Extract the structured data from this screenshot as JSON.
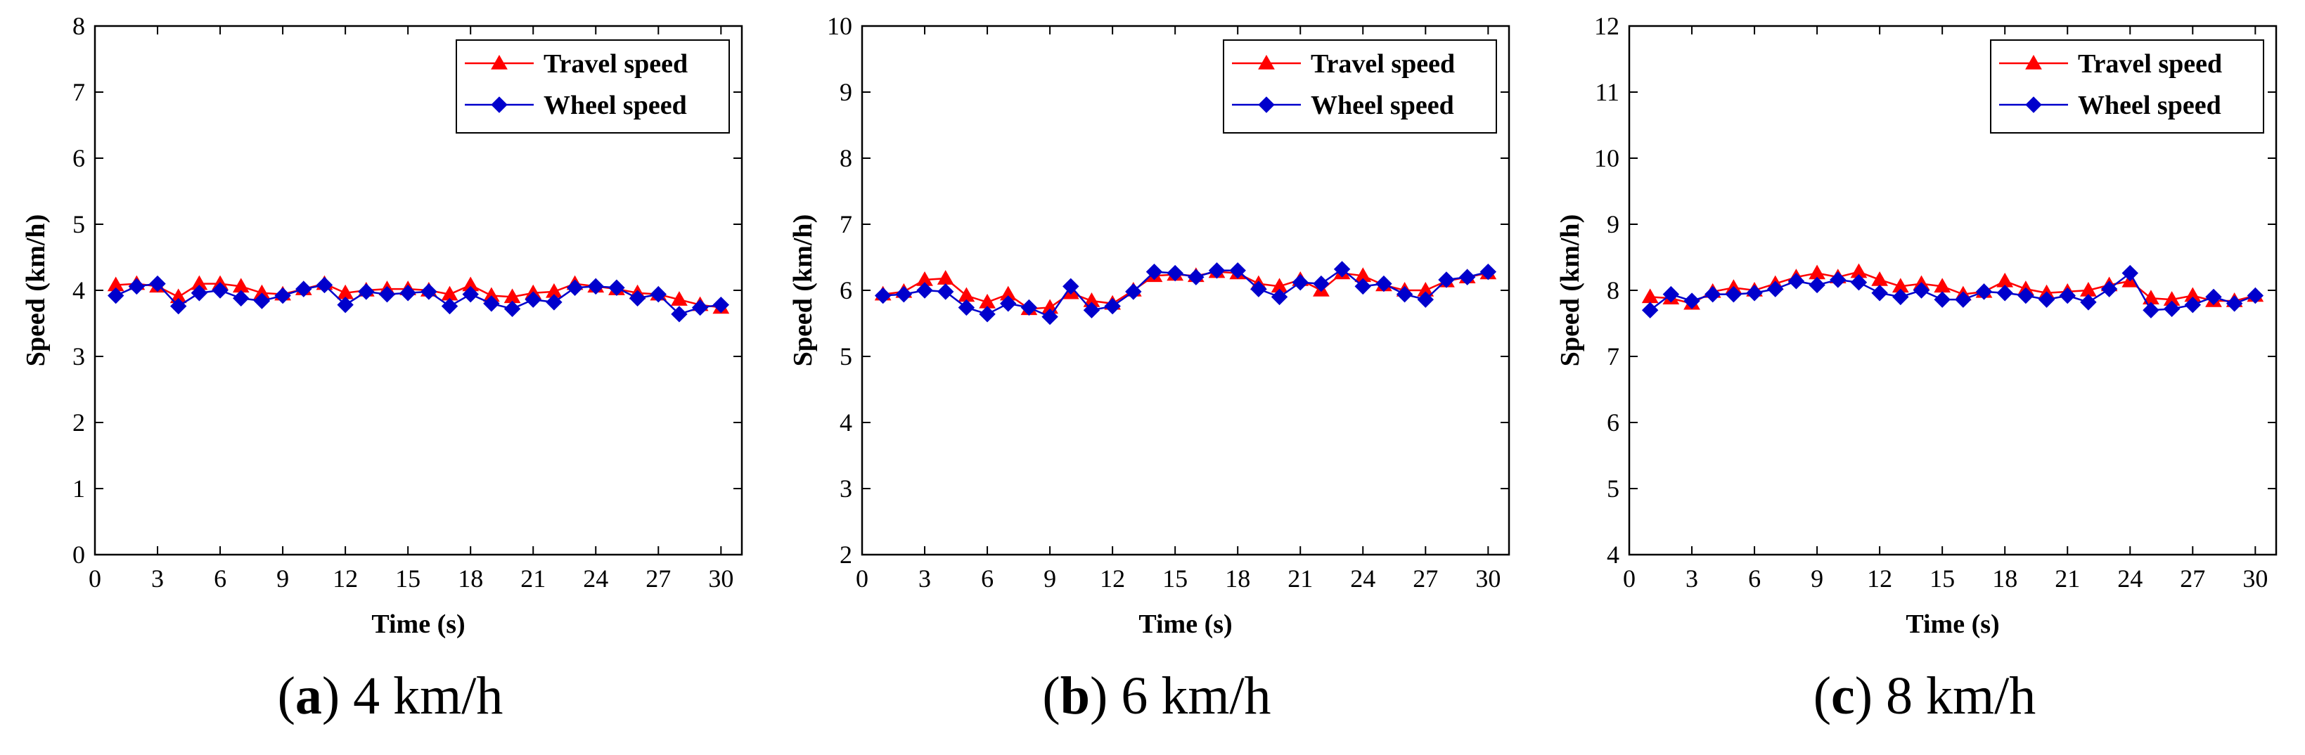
{
  "colors": {
    "travel": "#ff0000",
    "wheel": "#0000cc",
    "axis": "#000000",
    "background": "#ffffff"
  },
  "chart_data": [
    {
      "type": "line",
      "caption_letter": "a",
      "caption_text": "4 km/h",
      "xlabel": "Time (s)",
      "ylabel": "Speed (km/h)",
      "xlim": [
        0,
        31
      ],
      "ylim": [
        0,
        8
      ],
      "xticks": [
        0,
        3,
        6,
        9,
        12,
        15,
        18,
        21,
        24,
        27,
        30
      ],
      "yticks": [
        0,
        1,
        2,
        3,
        4,
        5,
        6,
        7,
        8
      ],
      "legend_position": "top-right",
      "x": [
        1,
        2,
        3,
        4,
        5,
        6,
        7,
        8,
        9,
        10,
        11,
        12,
        13,
        14,
        15,
        16,
        17,
        18,
        19,
        20,
        21,
        22,
        23,
        24,
        25,
        26,
        27,
        28,
        29,
        30
      ],
      "series": [
        {
          "name": "Travel speed",
          "marker": "triangle",
          "color_key": "travel",
          "values": [
            4.08,
            4.1,
            4.06,
            3.9,
            4.1,
            4.1,
            4.06,
            3.96,
            3.94,
            4.02,
            4.1,
            3.96,
            4.0,
            4.02,
            4.02,
            4.0,
            3.94,
            4.08,
            3.92,
            3.9,
            3.96,
            3.98,
            4.1,
            4.06,
            4.02,
            3.96,
            3.94,
            3.86,
            3.78,
            3.74
          ]
        },
        {
          "name": "Wheel speed",
          "marker": "diamond",
          "color_key": "wheel",
          "values": [
            3.92,
            4.06,
            4.1,
            3.76,
            3.96,
            4.0,
            3.88,
            3.84,
            3.92,
            4.02,
            4.08,
            3.78,
            3.98,
            3.94,
            3.96,
            3.98,
            3.76,
            3.94,
            3.8,
            3.72,
            3.86,
            3.82,
            4.04,
            4.06,
            4.04,
            3.88,
            3.94,
            3.64,
            3.74,
            3.78
          ]
        }
      ]
    },
    {
      "type": "line",
      "caption_letter": "b",
      "caption_text": "6 km/h",
      "xlabel": "Time (s)",
      "ylabel": "Speed (km/h)",
      "xlim": [
        0,
        31
      ],
      "ylim": [
        2,
        10
      ],
      "xticks": [
        0,
        3,
        6,
        9,
        12,
        15,
        18,
        21,
        24,
        27,
        30
      ],
      "yticks": [
        2,
        3,
        4,
        5,
        6,
        7,
        8,
        9,
        10
      ],
      "legend_position": "top-right",
      "x": [
        1,
        2,
        3,
        4,
        5,
        6,
        7,
        8,
        9,
        10,
        11,
        12,
        13,
        14,
        15,
        16,
        17,
        18,
        19,
        20,
        21,
        22,
        23,
        24,
        25,
        26,
        27,
        28,
        29,
        30
      ],
      "series": [
        {
          "name": "Travel speed",
          "marker": "triangle",
          "color_key": "travel",
          "values": [
            5.94,
            5.98,
            6.16,
            6.18,
            5.92,
            5.82,
            5.94,
            5.72,
            5.74,
            5.96,
            5.84,
            5.8,
            6.0,
            6.22,
            6.24,
            6.22,
            6.28,
            6.26,
            6.1,
            6.06,
            6.16,
            6.0,
            6.26,
            6.22,
            6.08,
            6.0,
            6.0,
            6.14,
            6.2,
            6.26
          ]
        },
        {
          "name": "Wheel speed",
          "marker": "diamond",
          "color_key": "wheel",
          "values": [
            5.92,
            5.94,
            6.0,
            5.98,
            5.74,
            5.64,
            5.8,
            5.74,
            5.6,
            6.06,
            5.7,
            5.76,
            5.98,
            6.28,
            6.26,
            6.2,
            6.3,
            6.3,
            6.02,
            5.9,
            6.12,
            6.1,
            6.32,
            6.06,
            6.1,
            5.94,
            5.86,
            6.16,
            6.2,
            6.28
          ]
        }
      ]
    },
    {
      "type": "line",
      "caption_letter": "c",
      "caption_text": "8 km/h",
      "xlabel": "Time (s)",
      "ylabel": "Speed (km/h)",
      "xlim": [
        0,
        31
      ],
      "ylim": [
        4,
        12
      ],
      "xticks": [
        0,
        3,
        6,
        9,
        12,
        15,
        18,
        21,
        24,
        27,
        30
      ],
      "yticks": [
        4,
        5,
        6,
        7,
        8,
        9,
        10,
        11,
        12
      ],
      "legend_position": "top-right",
      "x": [
        1,
        2,
        3,
        4,
        5,
        6,
        7,
        8,
        9,
        10,
        11,
        12,
        13,
        14,
        15,
        16,
        17,
        18,
        19,
        20,
        21,
        22,
        23,
        24,
        25,
        26,
        27,
        28,
        29,
        30
      ],
      "series": [
        {
          "name": "Travel speed",
          "marker": "triangle",
          "color_key": "travel",
          "values": [
            7.9,
            7.88,
            7.8,
            7.98,
            8.04,
            8.0,
            8.1,
            8.2,
            8.26,
            8.2,
            8.28,
            8.16,
            8.06,
            8.1,
            8.06,
            7.94,
            7.98,
            8.14,
            8.02,
            7.96,
            7.98,
            8.0,
            8.08,
            8.14,
            7.88,
            7.86,
            7.92,
            7.84,
            7.84,
            7.92
          ]
        },
        {
          "name": "Wheel speed",
          "marker": "diamond",
          "color_key": "wheel",
          "values": [
            7.7,
            7.94,
            7.84,
            7.94,
            7.94,
            7.96,
            8.02,
            8.14,
            8.08,
            8.16,
            8.12,
            7.96,
            7.9,
            8.0,
            7.86,
            7.86,
            7.98,
            7.96,
            7.92,
            7.86,
            7.92,
            7.82,
            8.02,
            8.26,
            7.7,
            7.72,
            7.78,
            7.9,
            7.8,
            7.92
          ]
        }
      ]
    }
  ]
}
